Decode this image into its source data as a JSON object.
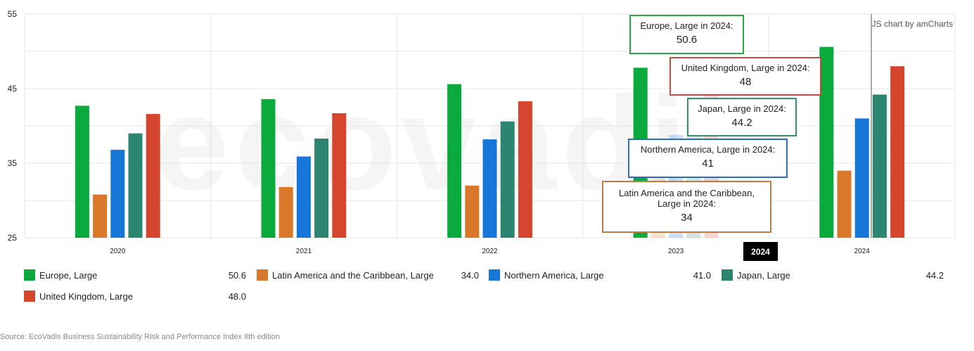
{
  "credit": "JS chart by amCharts",
  "watermark": "ecovadis",
  "source": "Source: EcoVadis Business Sustainability Risk and Performance Index 8th edition",
  "cursor_label": "2024",
  "colors": {
    "europe": "#0aaa3c",
    "latam": "#d9782a",
    "namerica": "#1677d9",
    "japan": "#2b8570",
    "uk": "#d4462e",
    "grid": "#e6e6e6"
  },
  "chart_data": {
    "type": "bar",
    "categories": [
      "2020",
      "2021",
      "2022",
      "2023",
      "2024"
    ],
    "ylim": [
      25,
      55
    ],
    "yticks": [
      25,
      35,
      45,
      55
    ],
    "series": [
      {
        "name": "Europe, Large",
        "color": "#0aaa3c",
        "values": [
          42.7,
          43.6,
          45.6,
          47.8,
          50.6
        ]
      },
      {
        "name": "Latin America and the Caribbean, Large",
        "color": "#d9782a",
        "values": [
          30.8,
          31.8,
          32.0,
          33.9,
          34.0
        ]
      },
      {
        "name": "Northern America, Large",
        "color": "#1677d9",
        "values": [
          36.8,
          35.9,
          38.2,
          38.8,
          41.0
        ]
      },
      {
        "name": "Japan, Large",
        "color": "#2b8570",
        "values": [
          39.0,
          38.3,
          40.6,
          41.6,
          44.2
        ]
      },
      {
        "name": "United Kingdom, Large",
        "color": "#d4462e",
        "values": [
          41.6,
          41.7,
          43.3,
          45.8,
          48.0
        ]
      }
    ],
    "legend": [
      {
        "label": "Europe, Large",
        "value": "50.6"
      },
      {
        "label": "Latin America and the Caribbean, Large",
        "value": "34.0"
      },
      {
        "label": "Northern America, Large",
        "value": "41.0"
      },
      {
        "label": "Japan, Large",
        "value": "44.2"
      },
      {
        "label": "United Kingdom, Large",
        "value": "48.0"
      }
    ],
    "tooltips": [
      {
        "label": "Europe, Large in 2024:",
        "value": "50.6"
      },
      {
        "label": "United Kingdom, Large in 2024:",
        "value": "48"
      },
      {
        "label": "Japan, Large in 2024:",
        "value": "44.2"
      },
      {
        "label": "Northern America, Large in 2024:",
        "value": "41"
      },
      {
        "label": "Latin America and the Caribbean, Large in 2024:",
        "value": "34"
      }
    ]
  }
}
